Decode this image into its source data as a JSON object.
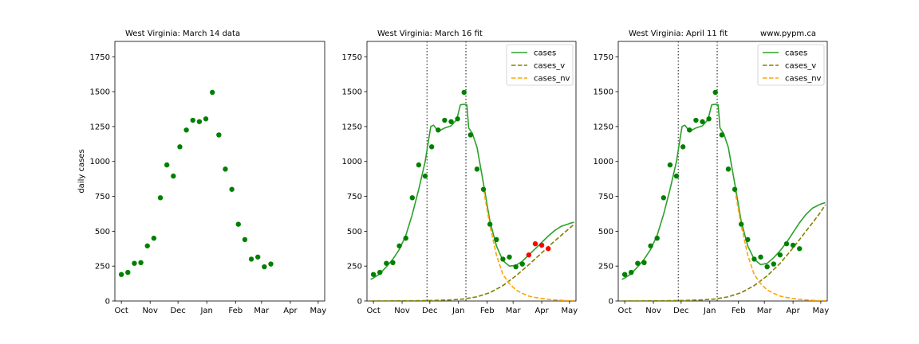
{
  "figure": {
    "watermark": "www.pypm.ca"
  },
  "chart_data": [
    {
      "type": "scatter",
      "title": "West Virginia:  March 14 data",
      "xlabel": "",
      "ylabel": "daily cases",
      "x_ticks": [
        "Oct",
        "Nov",
        "Dec",
        "Jan",
        "Feb",
        "Mar",
        "Apr",
        "May"
      ],
      "x_tick_days": [
        0,
        31,
        61,
        92,
        123,
        151,
        182,
        212
      ],
      "xlim_days": [
        -7,
        219
      ],
      "y_ticks": [
        0,
        250,
        500,
        750,
        1000,
        1250,
        1500,
        1750
      ],
      "ylim": [
        0,
        1860
      ],
      "grid": false,
      "legend": null,
      "vlines_days": [],
      "points": {
        "x_days": [
          0,
          7,
          14,
          21,
          28,
          35,
          42,
          49,
          56,
          63,
          70,
          77,
          84,
          91,
          98,
          105,
          112,
          119,
          126,
          133,
          140,
          147,
          154,
          161
        ],
        "values": [
          190,
          205,
          270,
          275,
          395,
          450,
          740,
          975,
          895,
          1105,
          1225,
          1295,
          1285,
          1305,
          1495,
          1190,
          945,
          800,
          550,
          440,
          300,
          315,
          245,
          265
        ],
        "color": "#008000"
      },
      "red_points": null,
      "series": []
    },
    {
      "type": "line",
      "title": "West Virginia:  March 16 fit",
      "xlabel": "",
      "ylabel": "",
      "x_ticks": [
        "Oct",
        "Nov",
        "Dec",
        "Jan",
        "Feb",
        "Mar",
        "Apr",
        "May"
      ],
      "x_tick_days": [
        0,
        31,
        61,
        92,
        123,
        151,
        182,
        212
      ],
      "xlim_days": [
        -7,
        219
      ],
      "y_ticks": [
        0,
        250,
        500,
        750,
        1000,
        1250,
        1500,
        1750
      ],
      "ylim": [
        0,
        1860
      ],
      "grid": false,
      "legend": "top-right",
      "vlines_days": [
        58,
        100
      ],
      "points": {
        "x_days": [
          0,
          7,
          14,
          21,
          28,
          35,
          42,
          49,
          56,
          63,
          70,
          77,
          84,
          91,
          98,
          105,
          112,
          119,
          126,
          133,
          140,
          147,
          154,
          161
        ],
        "values": [
          190,
          205,
          270,
          275,
          395,
          450,
          740,
          975,
          895,
          1105,
          1225,
          1295,
          1285,
          1305,
          1495,
          1190,
          945,
          800,
          550,
          440,
          300,
          315,
          245,
          265
        ],
        "color": "#008000"
      },
      "red_points": {
        "x_days": [
          168,
          175,
          182,
          189
        ],
        "values": [
          330,
          410,
          400,
          375
        ],
        "color": "#ff0000"
      },
      "series": [
        {
          "name": "cases",
          "color": "#2ca02c",
          "style": "solid",
          "x_days": [
            -3,
            0,
            7,
            14,
            21,
            28,
            35,
            42,
            49,
            56,
            60,
            62,
            65,
            70,
            77,
            84,
            90,
            94,
            98,
            101,
            103,
            107,
            112,
            119,
            126,
            133,
            140,
            147,
            154,
            161,
            168,
            175,
            182,
            189,
            196,
            203,
            212,
            217
          ],
          "values": [
            155,
            165,
            195,
            245,
            300,
            370,
            470,
            620,
            800,
            1000,
            1170,
            1250,
            1260,
            1215,
            1240,
            1255,
            1300,
            1405,
            1410,
            1405,
            1240,
            1200,
            1100,
            840,
            570,
            395,
            290,
            250,
            255,
            285,
            330,
            375,
            420,
            465,
            505,
            535,
            555,
            565
          ]
        },
        {
          "name": "cases_v",
          "color": "#808000",
          "style": "dashed",
          "x_days": [
            -3,
            28,
            56,
            84,
            98,
            112,
            126,
            140,
            154,
            168,
            182,
            196,
            210,
            217
          ],
          "values": [
            0,
            1,
            3,
            8,
            15,
            30,
            60,
            110,
            180,
            260,
            345,
            430,
            510,
            550
          ]
        },
        {
          "name": "cases_nv",
          "color": "#ffa500",
          "style": "dashed",
          "x_days": [
            119,
            126,
            133,
            140,
            147,
            154,
            161,
            168,
            175,
            182,
            189,
            196,
            203,
            210,
            217
          ],
          "values": [
            800,
            540,
            330,
            190,
            125,
            80,
            55,
            35,
            25,
            18,
            12,
            8,
            5,
            3,
            2
          ]
        }
      ]
    },
    {
      "type": "line",
      "title": "West Virginia:  April 11 fit",
      "xlabel": "",
      "ylabel": "",
      "x_ticks": [
        "Oct",
        "Nov",
        "Dec",
        "Jan",
        "Feb",
        "Mar",
        "Apr",
        "May"
      ],
      "x_tick_days": [
        0,
        31,
        61,
        92,
        123,
        151,
        182,
        212
      ],
      "xlim_days": [
        -7,
        219
      ],
      "y_ticks": [
        0,
        250,
        500,
        750,
        1000,
        1250,
        1500,
        1750
      ],
      "ylim": [
        0,
        1860
      ],
      "grid": false,
      "legend": "top-right",
      "vlines_days": [
        58,
        100
      ],
      "points": {
        "x_days": [
          0,
          7,
          14,
          21,
          28,
          35,
          42,
          49,
          56,
          63,
          70,
          77,
          84,
          91,
          98,
          105,
          112,
          119,
          126,
          133,
          140,
          147,
          154,
          161,
          168,
          175,
          182,
          189
        ],
        "values": [
          190,
          205,
          270,
          275,
          395,
          450,
          740,
          975,
          895,
          1105,
          1225,
          1295,
          1285,
          1305,
          1495,
          1190,
          945,
          800,
          550,
          440,
          300,
          315,
          245,
          265,
          330,
          410,
          400,
          375
        ],
        "color": "#008000"
      },
      "red_points": null,
      "series": [
        {
          "name": "cases",
          "color": "#2ca02c",
          "style": "solid",
          "x_days": [
            -3,
            0,
            7,
            14,
            21,
            28,
            35,
            42,
            49,
            56,
            60,
            62,
            65,
            70,
            77,
            84,
            90,
            94,
            98,
            101,
            103,
            107,
            112,
            119,
            126,
            133,
            140,
            147,
            154,
            161,
            168,
            175,
            182,
            189,
            196,
            203,
            212,
            217
          ],
          "values": [
            155,
            165,
            195,
            245,
            300,
            370,
            470,
            620,
            800,
            1000,
            1170,
            1250,
            1260,
            1215,
            1240,
            1255,
            1300,
            1405,
            1410,
            1405,
            1240,
            1200,
            1100,
            840,
            570,
            395,
            300,
            260,
            270,
            310,
            360,
            420,
            490,
            560,
            620,
            665,
            695,
            705
          ]
        },
        {
          "name": "cases_v",
          "color": "#808000",
          "style": "dashed",
          "x_days": [
            -3,
            28,
            56,
            84,
            98,
            112,
            126,
            140,
            154,
            168,
            182,
            196,
            210,
            217
          ],
          "values": [
            0,
            1,
            3,
            8,
            15,
            30,
            60,
            110,
            180,
            270,
            380,
            500,
            620,
            690
          ]
        },
        {
          "name": "cases_nv",
          "color": "#ffa500",
          "style": "dashed",
          "x_days": [
            119,
            126,
            133,
            140,
            147,
            154,
            161,
            168,
            175,
            182,
            189,
            196,
            203,
            210,
            217
          ],
          "values": [
            800,
            540,
            330,
            190,
            125,
            80,
            55,
            35,
            25,
            18,
            12,
            8,
            5,
            3,
            2
          ]
        }
      ]
    }
  ]
}
